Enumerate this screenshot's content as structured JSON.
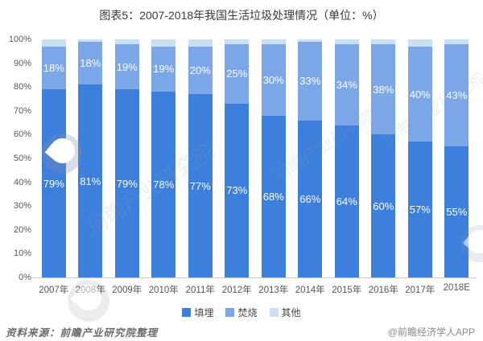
{
  "title": "图表5：2007-2018年我国生活垃圾处理情况（单位：%）",
  "chart_data": {
    "type": "bar",
    "stacked": true,
    "title": "图表5：2007-2018年我国生活垃圾处理情况（单位：%）",
    "unit": "%",
    "categories": [
      "2007年",
      "2008年",
      "2009年",
      "2010年",
      "2011年",
      "2012年",
      "2013年",
      "2014年",
      "2015年",
      "2016年",
      "2017年",
      "2018E"
    ],
    "series": [
      {
        "key": "landfill",
        "name": "填埋",
        "color": "#3d7fdd",
        "show_labels": true,
        "values": [
          79,
          81,
          79,
          78,
          77,
          73,
          68,
          66,
          64,
          60,
          57,
          55
        ]
      },
      {
        "key": "incineration",
        "name": "焚烧",
        "color": "#7ba7e8",
        "show_labels": true,
        "values": [
          18,
          18,
          19,
          19,
          20,
          25,
          30,
          33,
          34,
          38,
          40,
          43
        ]
      },
      {
        "key": "other",
        "name": "其他",
        "color": "#c9def7",
        "show_labels": false,
        "values": [
          3,
          1,
          2,
          3,
          3,
          2,
          2,
          1,
          2,
          2,
          3,
          2
        ]
      }
    ],
    "ylim": [
      0,
      100
    ],
    "y_ticks": [
      "0%",
      "10%",
      "20%",
      "30%",
      "40%",
      "50%",
      "60%",
      "70%",
      "80%",
      "90%",
      "100%"
    ],
    "grid": false,
    "legend_position": "bottom",
    "bar_label_color": "#ffffff"
  },
  "footer": {
    "source": "资料来源：前瞻产业研究院整理",
    "credit": "@前瞻经济学人APP"
  },
  "watermark": {
    "text": "前瞻产业研究院"
  }
}
